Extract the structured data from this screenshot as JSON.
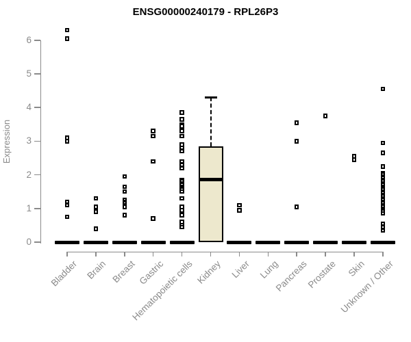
{
  "title": "ENSG00000240179 - RPL26P3",
  "chart_data": {
    "type": "boxplot",
    "title": "ENSG00000240179 - RPL26P3",
    "xlabel": "",
    "ylabel": "Expression",
    "ylim": [
      0,
      6
    ],
    "yticks": [
      0,
      1,
      2,
      3,
      4,
      5,
      6
    ],
    "grid": false,
    "legend": "none",
    "categories": [
      "Bladder",
      "Brain",
      "Breast",
      "Gastric",
      "Hematopoietic cells",
      "Kidney",
      "Liver",
      "Lung",
      "Pancreas",
      "Prostate",
      "Skin",
      "Unknown / Other"
    ],
    "groups": [
      {
        "name": "Bladder",
        "box": {
          "min": 0,
          "q1": 0,
          "median": 0,
          "q3": 0,
          "max": 0
        },
        "points": [
          6.3,
          6.05,
          3.1,
          3.0,
          1.2,
          1.1,
          0.75
        ]
      },
      {
        "name": "Brain",
        "box": {
          "min": 0,
          "q1": 0,
          "median": 0,
          "q3": 0,
          "max": 0
        },
        "points": [
          1.3,
          1.05,
          0.9,
          0.4
        ]
      },
      {
        "name": "Breast",
        "box": {
          "min": 0,
          "q1": 0,
          "median": 0,
          "q3": 0,
          "max": 0
        },
        "points": [
          1.95,
          1.65,
          1.5,
          1.25,
          1.2,
          1.15,
          1.1,
          1.05,
          0.8
        ]
      },
      {
        "name": "Gastric",
        "box": {
          "min": 0,
          "q1": 0,
          "median": 0,
          "q3": 0,
          "max": 0
        },
        "points": [
          3.3,
          3.15,
          2.4,
          0.7
        ]
      },
      {
        "name": "Hematopoietic cells",
        "box": {
          "min": 0,
          "q1": 0,
          "median": 0,
          "q3": 0,
          "max": 0
        },
        "points": [
          3.85,
          3.65,
          3.5,
          3.45,
          3.3,
          3.15,
          2.9,
          2.8,
          2.7,
          2.4,
          2.3,
          2.2,
          1.85,
          1.8,
          1.75,
          1.7,
          1.65,
          1.6,
          1.55,
          1.5,
          1.3,
          1.05,
          0.95,
          0.8,
          0.6,
          0.5,
          0.45
        ]
      },
      {
        "name": "Kidney",
        "box": {
          "min": 0,
          "q1": 0,
          "median": 1.85,
          "q3": 2.85,
          "max": 4.3
        },
        "points": []
      },
      {
        "name": "Liver",
        "box": {
          "min": 0,
          "q1": 0,
          "median": 0,
          "q3": 0,
          "max": 0
        },
        "points": [
          1.1,
          0.95
        ]
      },
      {
        "name": "Lung",
        "box": {
          "min": 0,
          "q1": 0,
          "median": 0,
          "q3": 0,
          "max": 0
        },
        "points": []
      },
      {
        "name": "Pancreas",
        "box": {
          "min": 0,
          "q1": 0,
          "median": 0,
          "q3": 0,
          "max": 0
        },
        "points": [
          3.55,
          3.0,
          1.05
        ]
      },
      {
        "name": "Prostate",
        "box": {
          "min": 0,
          "q1": 0,
          "median": 0,
          "q3": 0,
          "max": 0
        },
        "points": [
          3.75
        ]
      },
      {
        "name": "Skin",
        "box": {
          "min": 0,
          "q1": 0,
          "median": 0,
          "q3": 0,
          "max": 0
        },
        "points": [
          2.55,
          2.45
        ]
      },
      {
        "name": "Unknown / Other",
        "box": {
          "min": 0,
          "q1": 0,
          "median": 0,
          "q3": 0,
          "max": 0
        },
        "points": [
          4.55,
          2.95,
          2.65,
          2.25,
          2.05,
          2.0,
          1.95,
          1.9,
          1.85,
          1.8,
          1.75,
          1.7,
          1.65,
          1.6,
          1.55,
          1.5,
          1.45,
          1.4,
          1.35,
          1.3,
          1.25,
          1.2,
          1.15,
          1.1,
          1.05,
          1.0,
          0.95,
          0.9,
          0.85,
          0.55,
          0.45,
          0.35
        ]
      }
    ],
    "style": {
      "box_fill": "#ede8cd",
      "box_border": "#000000",
      "median_color": "#000000",
      "point_color": "#000000",
      "axis_color": "#8a8a8a",
      "title_color": "#000000",
      "point_shape": "open-square",
      "whisker_style": "dashed"
    }
  }
}
